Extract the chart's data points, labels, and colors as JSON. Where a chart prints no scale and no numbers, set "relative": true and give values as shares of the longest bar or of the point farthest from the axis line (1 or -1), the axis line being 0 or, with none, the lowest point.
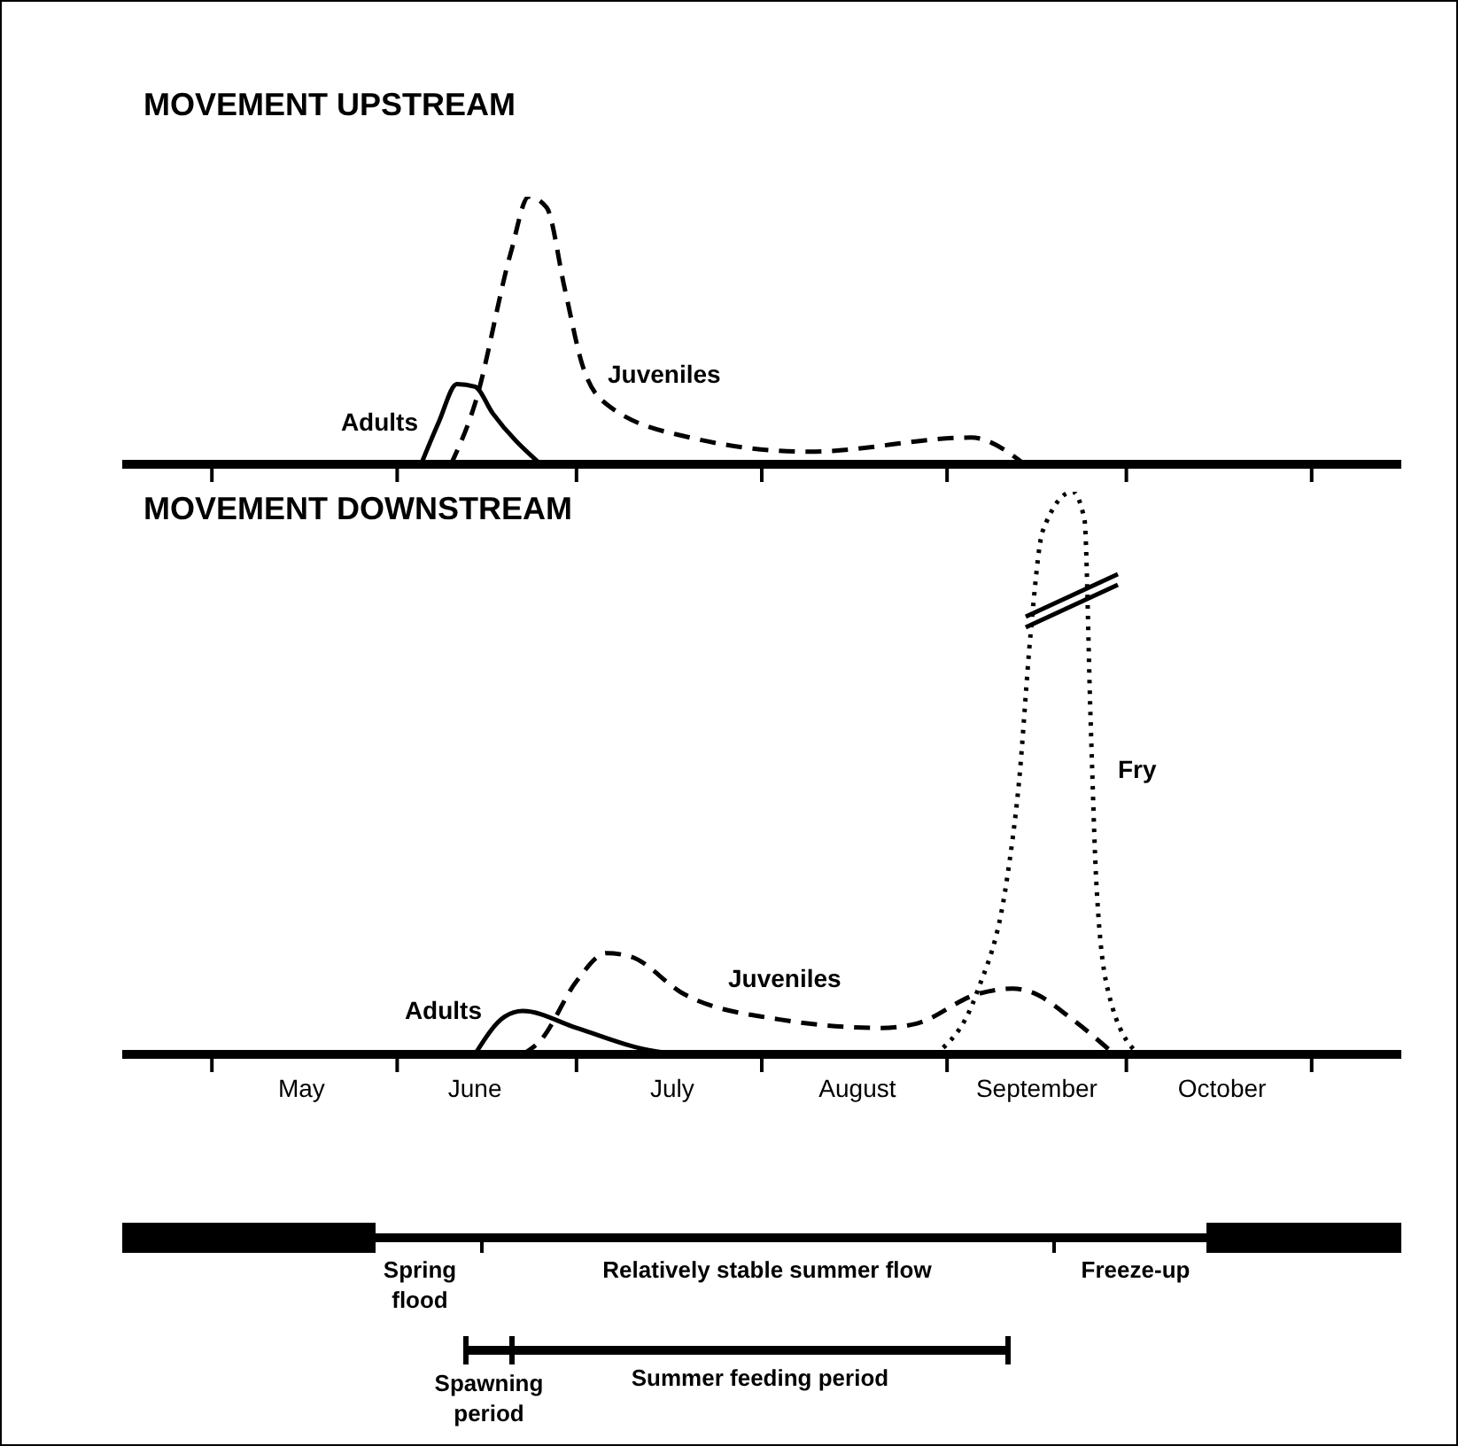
{
  "chart_data": [
    {
      "type": "line",
      "title": "MOVEMENT UPSTREAM",
      "relative": true,
      "xlim": [
        "--04-16",
        "--11-16"
      ],
      "tick_labels": false,
      "marker": "none",
      "xticks": [
        {
          "value": "--05-01",
          "label": null
        },
        {
          "value": "--06-01",
          "label": null
        },
        {
          "value": "--07-01",
          "label": null
        },
        {
          "value": "--08-01",
          "label": null
        },
        {
          "value": "--09-01",
          "label": null
        },
        {
          "value": "--10-01",
          "label": null
        },
        {
          "value": "--11-01",
          "label": null
        }
      ],
      "series": [
        {
          "name": "Adults",
          "color": "#000000",
          "line_style": "solid",
          "x": [
            "--06-05",
            "--06-08",
            "--06-11",
            "--06-14",
            "--06-17",
            "--06-25"
          ],
          "values": [
            0,
            0.16,
            0.3,
            0.29,
            0.19,
            0
          ]
        },
        {
          "name": "Juveniles",
          "color": "#000000",
          "line_style": "dashed",
          "x": [
            "--06-10",
            "--06-14",
            "--06-20",
            "--06-23",
            "--06-26",
            "--06-29",
            "--07-02",
            "--07-06",
            "--07-20",
            "--08-09",
            "--09-05",
            "--09-14"
          ],
          "values": [
            0,
            0.225,
            0.79,
            1,
            0.96,
            0.66,
            0.37,
            0.225,
            0.1,
            0.047,
            0.1,
            0
          ]
        }
      ]
    },
    {
      "type": "line",
      "title": "MOVEMENT DOWNSTREAM",
      "relative": true,
      "xlim": [
        "--04-16",
        "--11-16"
      ],
      "tick_labels": "x",
      "marker": "none",
      "xticks": [
        {
          "value": "--05-01",
          "label": null
        },
        {
          "value": "--05-16",
          "label": "May"
        },
        {
          "value": "--06-01",
          "label": null
        },
        {
          "value": "--06-14",
          "label": "June"
        },
        {
          "value": "--07-01",
          "label": null
        },
        {
          "value": "--07-17",
          "label": "July"
        },
        {
          "value": "--08-01",
          "label": null
        },
        {
          "value": "--08-17",
          "label": "August"
        },
        {
          "value": "--09-01",
          "label": null
        },
        {
          "value": "--09-16",
          "label": "September"
        },
        {
          "value": "--10-01",
          "label": null
        },
        {
          "value": "--10-17",
          "label": "October"
        },
        {
          "value": "--11-01",
          "label": null
        }
      ],
      "series": [
        {
          "name": "Adults",
          "color": "#000000",
          "line_style": "solid",
          "x": [
            "--06-14",
            "--06-19",
            "--06-22",
            "--07-01",
            "--07-12",
            "--07-18"
          ],
          "values": [
            0,
            0.067,
            0.077,
            0.047,
            0.01,
            0
          ]
        },
        {
          "name": "Juveniles",
          "color": "#000000",
          "line_style": "dashed",
          "x": [
            "--06-22",
            "--06-25",
            "--07-01",
            "--07-06",
            "--07-10",
            "--07-19",
            "--08-04",
            "--08-21",
            "--08-27",
            "--09-06",
            "--09-12",
            "--09-15",
            "--09-22",
            "--09-29"
          ],
          "values": [
            0,
            0.025,
            0.13,
            0.18,
            0.174,
            0.107,
            0.062,
            0.047,
            0.055,
            0.107,
            0.117,
            0.111,
            0.062,
            0
          ]
        },
        {
          "name": "Fry",
          "color": "#000000",
          "line_style": "dotted",
          "x": [
            "--08-30",
            "--09-06",
            "--09-11",
            "--09-13",
            "--09-15",
            "--09-17",
            "--09-22",
            "--09-24",
            "--09-25",
            "--09-26",
            "--09-28",
            "--10-03"
          ],
          "values": [
            0,
            0.11,
            0.31,
            0.48,
            0.75,
            0.93,
            1,
            0.95,
            0.6,
            0.3,
            0.11,
            0
          ]
        }
      ]
    },
    {
      "type": "other",
      "annotations": [
        "Spring flood",
        "Relatively stable summer flow",
        "Freeze-up",
        "Spawning period",
        "Summer feeding period"
      ]
    }
  ]
}
